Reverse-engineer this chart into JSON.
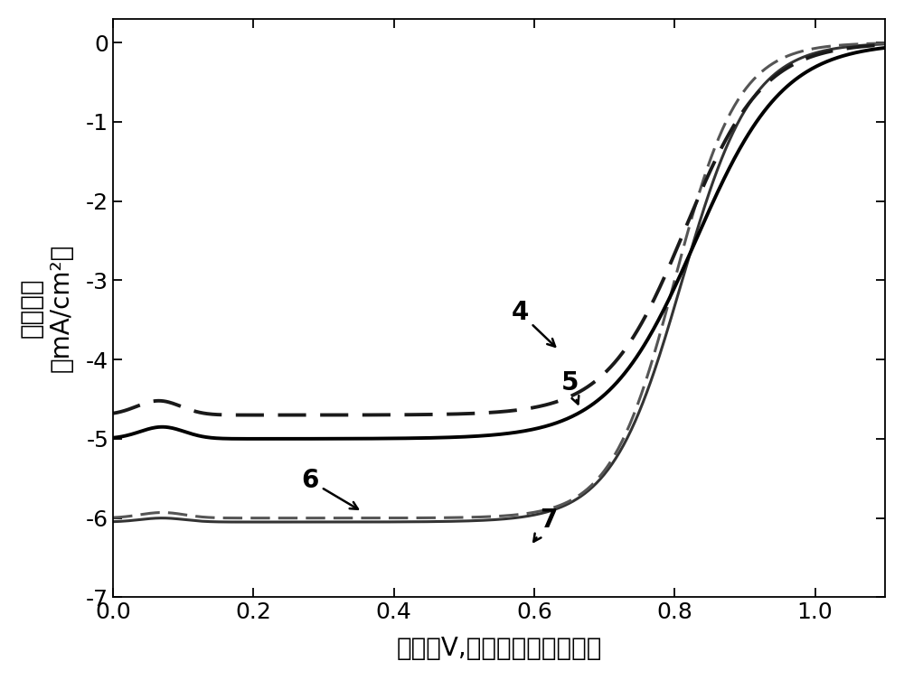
{
  "xlabel": "电位（V,相对于可逆氢电极）",
  "ylabel_line1": "电流密度",
  "ylabel_line2": "（mA/cm²）",
  "xlim": [
    0.0,
    1.1
  ],
  "ylim": [
    -7,
    0.3
  ],
  "yticks": [
    0,
    -1,
    -2,
    -3,
    -4,
    -5,
    -6,
    -7
  ],
  "xticks": [
    0.0,
    0.2,
    0.4,
    0.6,
    0.8,
    1.0
  ],
  "background_color": "#ffffff",
  "curve4_color": "#1a1a1a",
  "curve5_color": "#000000",
  "curve6_color": "#555555",
  "curve7_color": "#333333",
  "curve4_lw": 2.8,
  "curve5_lw": 2.8,
  "curve6_lw": 2.2,
  "curve7_lw": 2.2,
  "xlabel_fontsize": 20,
  "ylabel_fontsize": 20,
  "tick_fontsize": 18,
  "annotation_fontsize": 20
}
